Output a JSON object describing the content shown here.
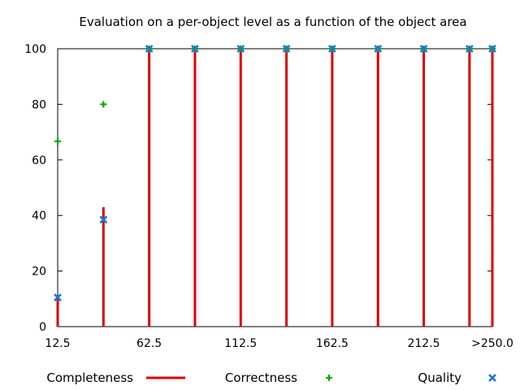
{
  "chart_data": {
    "type": "bar",
    "title": "Evaluation on a per-object level as a function of the object area",
    "xlabel": "",
    "ylabel": "",
    "x": [
      12.5,
      37.5,
      62.5,
      87.5,
      112.5,
      137.5,
      162.5,
      187.5,
      212.5,
      237.5,
      250
    ],
    "xlim": [
      12.5,
      250
    ],
    "ylim": [
      0,
      100
    ],
    "x_tick_values": [
      12.5,
      62.5,
      112.5,
      162.5,
      212.5,
      250
    ],
    "x_tick_labels": [
      "12.5",
      "62.5",
      "112.5",
      "162.5",
      "212.5",
      ">250.0"
    ],
    "y_ticks": [
      0,
      20,
      40,
      60,
      80,
      100
    ],
    "grid": false,
    "legend_position": "bottom",
    "series": [
      {
        "name": "Completeness",
        "style": "impulse",
        "color": "#dd0000",
        "values": [
          10,
          43,
          100,
          100,
          100,
          100,
          100,
          100,
          100,
          100,
          100
        ]
      },
      {
        "name": "Correctness",
        "style": "plus",
        "color": "#00aa00",
        "values": [
          66.7,
          80,
          100,
          100,
          100,
          100,
          100,
          100,
          100,
          100,
          100
        ]
      },
      {
        "name": "Quality",
        "style": "cross",
        "color": "#1e78d2",
        "values": [
          10.5,
          38.5,
          100,
          100,
          100,
          100,
          100,
          100,
          100,
          100,
          100
        ]
      }
    ]
  }
}
